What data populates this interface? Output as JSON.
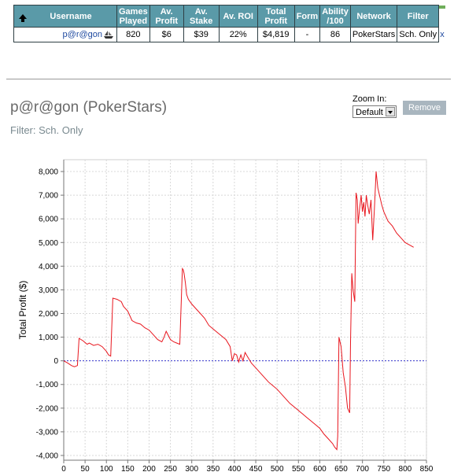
{
  "table": {
    "headers": [
      "Username",
      "Games Played",
      "Av. Profit",
      "Av. Stake",
      "Av. ROI",
      "Total Profit",
      "Form",
      "Ability /100",
      "Network",
      "Filter"
    ],
    "row": {
      "username": "p@r@gon",
      "games_played": "820",
      "av_profit": "$6",
      "av_stake": "$39",
      "av_roi": "22%",
      "total_profit": "$4,819",
      "form": "-",
      "ability": "86",
      "network": "PokerStars",
      "filter": "Sch. Only",
      "remove_x": "x"
    }
  },
  "panel": {
    "title": "p@r@gon (PokerStars)",
    "filter_text": "Filter: Sch. Only",
    "zoom_label": "Zoom In:",
    "zoom_value": "Default",
    "remove_label": "Remove"
  },
  "colors": {
    "header_bg": "#5a9aa8",
    "line": "#e8161e",
    "zero_line": "#3a3ad0",
    "remove_bg": "#a9b6bf"
  },
  "chart_data": {
    "type": "line",
    "title": "",
    "xlabel": "",
    "ylabel": "Total Profit ($)",
    "xlim": [
      0,
      850
    ],
    "ylim": [
      -4200,
      8500
    ],
    "x_ticks": [
      0,
      50,
      100,
      150,
      200,
      250,
      300,
      350,
      400,
      450,
      500,
      550,
      600,
      650,
      700,
      750,
      800,
      850
    ],
    "y_ticks": [
      -4000,
      -3000,
      -2000,
      -1000,
      0,
      1000,
      2000,
      3000,
      4000,
      5000,
      6000,
      7000,
      8000
    ],
    "y_tick_labels": [
      "-4,000",
      "-3,000",
      "-2,000",
      "-1,000",
      "0",
      "1,000",
      "2,000",
      "3,000",
      "4,000",
      "5,000",
      "6,000",
      "7,000",
      "8,000"
    ],
    "grid": true,
    "series": [
      {
        "x": [
          0,
          10,
          18,
          25,
          32,
          36,
          45,
          55,
          60,
          70,
          80,
          90,
          100,
          105,
          110,
          115,
          125,
          135,
          140,
          150,
          160,
          170,
          180,
          190,
          200,
          210,
          220,
          230,
          235,
          240,
          250,
          258,
          265,
          272,
          278,
          280,
          282,
          285,
          288,
          292,
          300,
          310,
          320,
          330,
          340,
          350,
          360,
          370,
          380,
          390,
          395,
          400,
          405,
          410,
          415,
          420,
          425,
          430,
          440,
          450,
          460,
          470,
          480,
          490,
          500,
          510,
          520,
          530,
          540,
          550,
          560,
          570,
          580,
          590,
          600,
          610,
          620,
          630,
          635,
          640,
          642,
          645,
          650,
          655,
          660,
          665,
          670,
          672,
          675,
          678,
          682,
          685,
          688,
          690,
          693,
          697,
          700,
          703,
          706,
          709,
          712,
          716,
          720,
          724,
          728,
          732,
          736,
          740,
          745,
          750,
          755,
          760,
          770,
          780,
          790,
          800,
          810,
          820
        ],
        "y": [
          0,
          -100,
          -200,
          -250,
          -200,
          950,
          850,
          700,
          750,
          650,
          700,
          600,
          400,
          250,
          200,
          2650,
          2600,
          2500,
          2300,
          2100,
          1700,
          1600,
          1550,
          1400,
          1300,
          1100,
          900,
          800,
          1000,
          1250,
          900,
          800,
          750,
          700,
          3900,
          3850,
          3700,
          3300,
          2800,
          2600,
          2400,
          2200,
          2000,
          1800,
          1500,
          1350,
          1200,
          1050,
          900,
          600,
          0,
          300,
          250,
          -50,
          250,
          0,
          350,
          200,
          -100,
          -300,
          -500,
          -700,
          -900,
          -1050,
          -1200,
          -1400,
          -1600,
          -1800,
          -1950,
          -2100,
          -2250,
          -2400,
          -2550,
          -2700,
          -2850,
          -3100,
          -3300,
          -3500,
          -3650,
          -3750,
          -3200,
          1000,
          600,
          -500,
          -1100,
          -2000,
          -2200,
          800,
          3700,
          3000,
          2500,
          7100,
          6800,
          5800,
          6400,
          7000,
          6300,
          6700,
          6100,
          7000,
          6600,
          6200,
          6800,
          5100,
          6400,
          8000,
          7300,
          7000,
          6600,
          6300,
          6100,
          5900,
          5700,
          5400,
          5200,
          5000,
          4900,
          4800
        ]
      }
    ]
  }
}
